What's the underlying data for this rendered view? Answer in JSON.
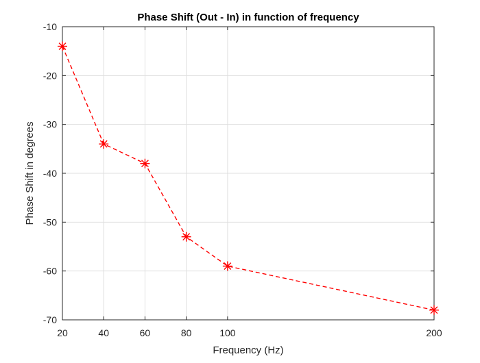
{
  "chart_data": {
    "type": "line",
    "title": "Phase Shift (Out - In) in function of frequency",
    "xlabel": "Frequency (Hz)",
    "ylabel": "Phase Shift in degrees",
    "x": [
      20,
      40,
      60,
      80,
      100,
      200
    ],
    "series": [
      {
        "values": [
          -14,
          -34,
          -38,
          -53,
          -59,
          -68
        ],
        "color": "#ff0000",
        "line_style": "dashed",
        "marker": "asterisk"
      }
    ],
    "xlim": [
      20,
      200
    ],
    "ylim": [
      -70,
      -10
    ],
    "xticks": [
      20,
      40,
      60,
      80,
      100,
      200
    ],
    "xtick_labels": [
      "20",
      "40",
      "60",
      "80",
      "100",
      "200"
    ],
    "yticks": [
      -10,
      -20,
      -30,
      -40,
      -50,
      -60,
      -70
    ],
    "ytick_labels": [
      "-10",
      "-20",
      "-30",
      "-40",
      "-50",
      "-60",
      "-70"
    ],
    "grid": true,
    "legend": false
  }
}
